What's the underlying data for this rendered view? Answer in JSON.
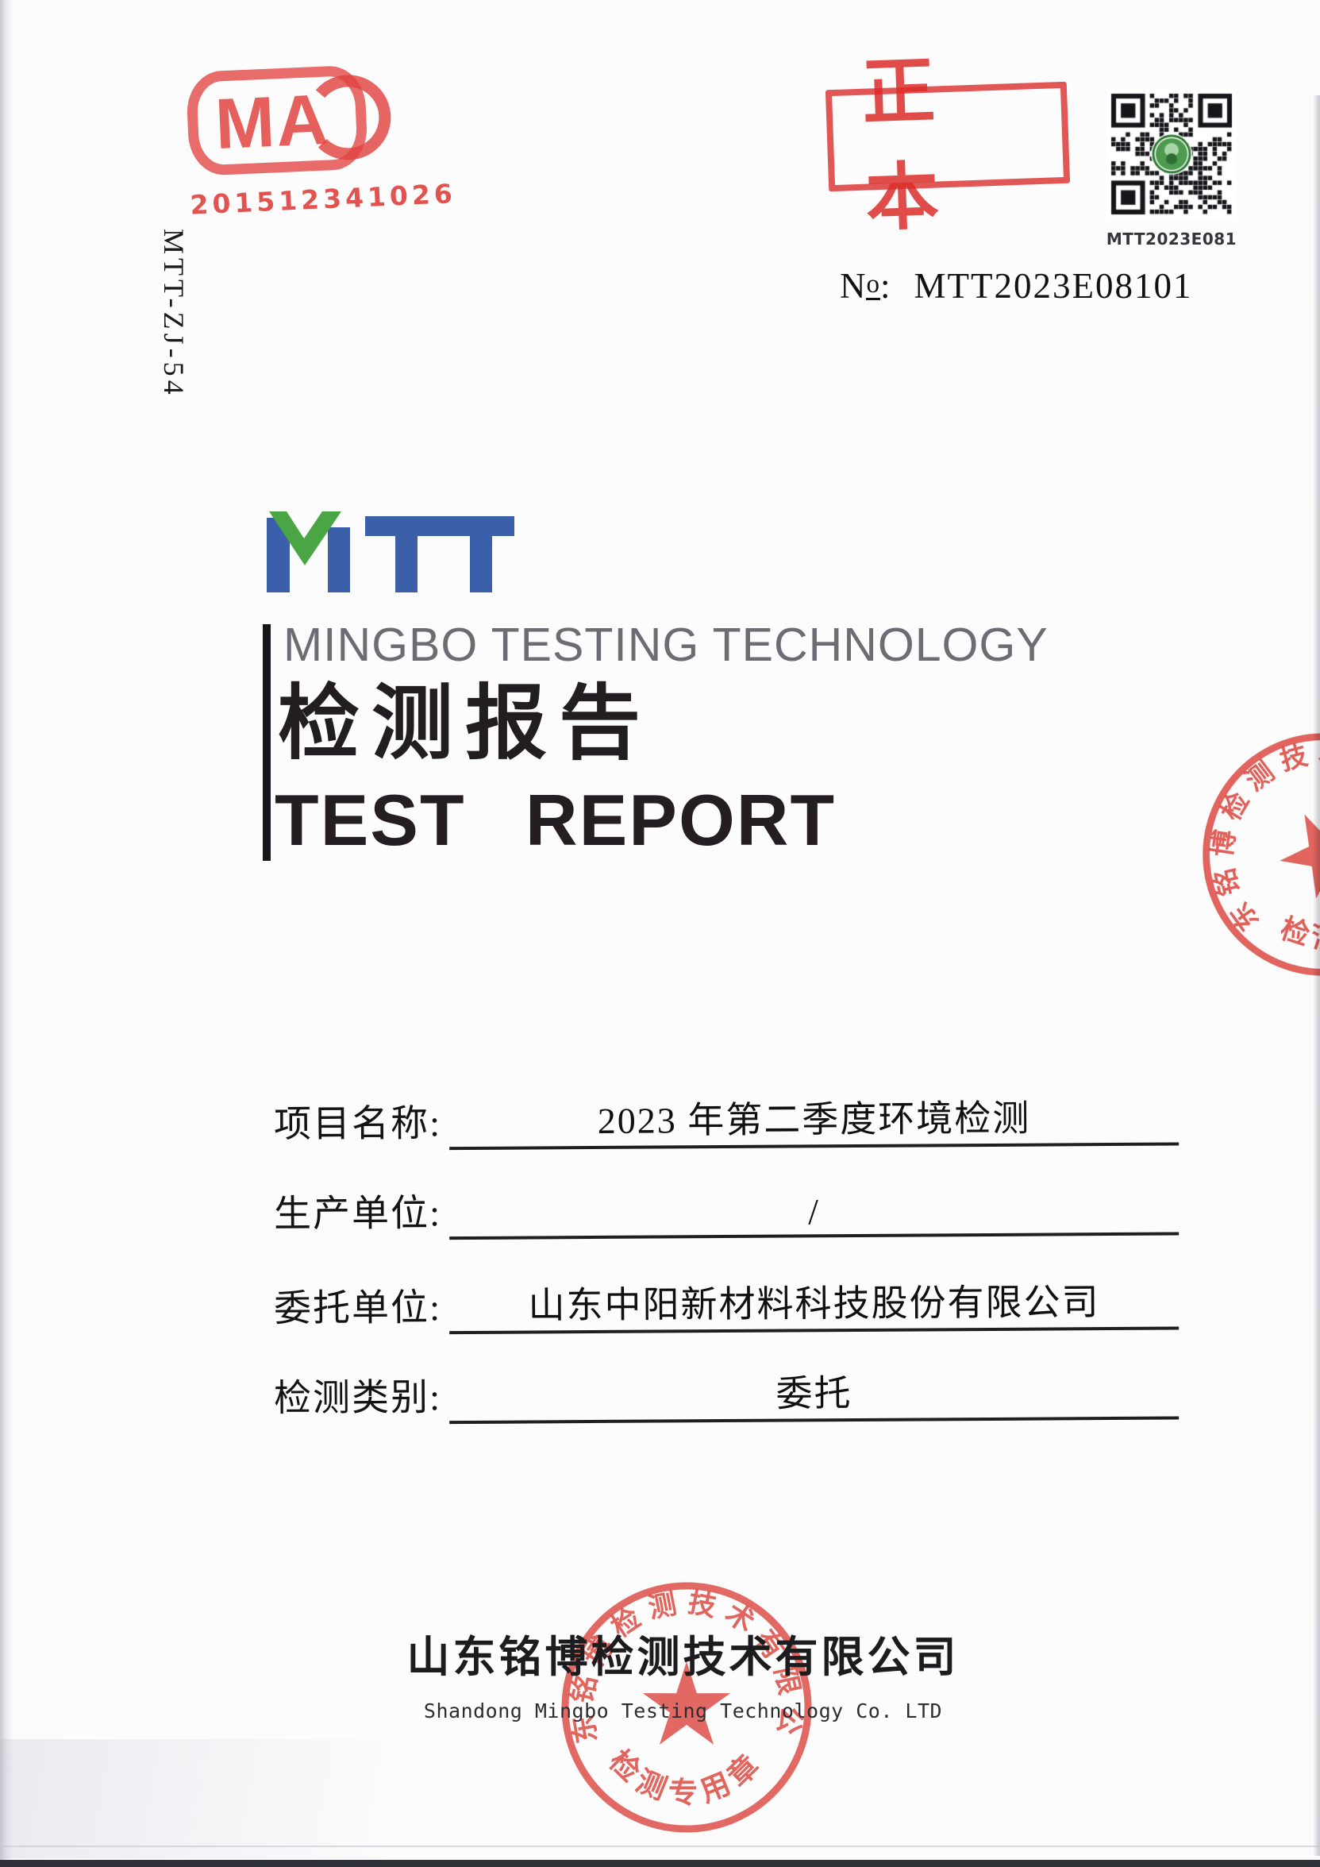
{
  "document": {
    "side_code": "MTT-ZJ-54",
    "cma_stamp": {
      "letters": "MA",
      "number": "201512341026"
    },
    "original_stamp": {
      "text": "正本"
    },
    "qr": {
      "caption": "MTT2023E081"
    },
    "report_no": {
      "n": "N",
      "o": "o",
      "colon": ":",
      "value": "MTT2023E08101"
    },
    "brand": {
      "logo_text": "MTT",
      "subtitle": "MINGBO TESTING TECHNOLOGY"
    },
    "title": {
      "cn": "检测报告",
      "en": "TEST REPORT"
    },
    "fields": [
      {
        "label": "项目名称:",
        "value": "2023 年第二季度环境检测"
      },
      {
        "label": "生产单位:",
        "value": "/"
      },
      {
        "label": "委托单位:",
        "value": "山东中阳新材料科技股份有限公司"
      },
      {
        "label": "检测类别:",
        "value": "委托"
      }
    ],
    "footer": {
      "company_cn": "山东铭博检测技术有限公司",
      "company_en": "Shandong Mingbo Testing Technology Co. LTD"
    },
    "seal": {
      "ring_text": "山东铭博检测技术有限公司",
      "caption": "检测专用章"
    },
    "colors": {
      "stamp_red": "#dc362e",
      "logo_blue": "#3b5fa8",
      "logo_green": "#4aa545",
      "subtitle_gray": "#6e6b73"
    }
  }
}
